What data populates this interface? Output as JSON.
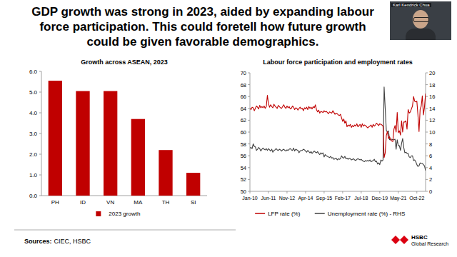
{
  "slide": {
    "title": "GDP growth was strong in 2023, aided by expanding labour force participation. This could foretell how future growth could be given favorable demographics.",
    "presenter": "Karl Kendrick Chua",
    "sources_label": "Sources:",
    "sources": "CIEC, HSBC",
    "brand": "HSBC",
    "brand_sub": "Global Research"
  },
  "chart_data": [
    {
      "type": "bar",
      "title": "Growth across ASEAN, 2023",
      "categories": [
        "PH",
        "ID",
        "VN",
        "MA",
        "TH",
        "SI"
      ],
      "series": [
        {
          "name": "2023 growth",
          "color": "#c00000",
          "values": [
            5.55,
            5.05,
            5.05,
            3.7,
            2.2,
            1.1
          ]
        }
      ],
      "ylim": [
        0,
        6
      ],
      "yticks": [
        {
          "value": 0,
          "label": "0.0"
        },
        {
          "value": 1,
          "label": "1.0"
        },
        {
          "value": 2,
          "label": "2.0"
        },
        {
          "value": 3,
          "label": "3.0"
        },
        {
          "value": 4,
          "label": "4.0"
        },
        {
          "value": 5,
          "label": "5.0"
        },
        {
          "value": 6,
          "label": "6.0"
        }
      ],
      "legend": "bottom",
      "grid": false
    },
    {
      "type": "line",
      "title": "Labour force participation and employment rates",
      "categories": [
        "Jan-10",
        null,
        null,
        null,
        null,
        null,
        null,
        null,
        null,
        null,
        null,
        null,
        null,
        null,
        null,
        null,
        null,
        "Jun-11",
        null,
        null,
        null,
        null,
        null,
        null,
        null,
        null,
        null,
        null,
        null,
        null,
        null,
        null,
        null,
        null,
        "Nov-12",
        null,
        null,
        null,
        null,
        null,
        null,
        null,
        null,
        null,
        null,
        null,
        null,
        null,
        null,
        null,
        null,
        "Apr-14",
        null,
        null,
        null,
        null,
        null,
        null,
        null,
        null,
        null,
        null,
        null,
        null,
        null,
        null,
        null,
        null,
        "Sep-15",
        null,
        null,
        null,
        null,
        null,
        null,
        null,
        null,
        null,
        null,
        null,
        null,
        null,
        null,
        null,
        null,
        "Feb-17",
        null,
        null,
        null,
        null,
        null,
        null,
        null,
        null,
        null,
        null,
        null,
        null,
        null,
        null,
        null,
        null,
        "Jul-18",
        null,
        null,
        null,
        null,
        null,
        null,
        null,
        null,
        null,
        null,
        null,
        null,
        null,
        null,
        null,
        null,
        "Dec-19",
        null,
        null,
        null,
        null,
        null,
        null,
        null,
        null,
        null,
        null,
        null,
        null,
        null,
        null,
        null,
        null,
        "May-21",
        null,
        null,
        null,
        null,
        null,
        null,
        null,
        null,
        null,
        null,
        null,
        null,
        null,
        null,
        null,
        null,
        "Oct-22",
        null,
        null,
        null,
        null,
        null,
        null,
        null,
        null
      ],
      "series": [
        {
          "name": "LFP rate (%)",
          "color": "#c00000",
          "values": [
            64.0,
            63.8,
            64.2,
            64.1,
            63.6,
            64.0,
            64.4,
            64.2,
            63.9,
            64.5,
            64.1,
            64.3,
            64.1,
            64.4,
            64.0,
            64.3,
            66.2,
            64.8,
            64.2,
            64.6,
            64.3,
            64.1,
            64.7,
            64.4,
            64.2,
            64.0,
            64.5,
            64.3,
            64.1,
            64.0,
            64.3,
            64.6,
            64.2,
            64.0,
            64.4,
            64.1,
            64.3,
            63.9,
            64.0,
            64.4,
            64.2,
            63.8,
            64.1,
            64.0,
            63.7,
            64.0,
            64.2,
            63.9,
            64.0,
            63.6,
            64.1,
            63.9,
            64.2,
            63.8,
            64.3,
            64.0,
            64.2,
            63.9,
            64.3,
            64.1,
            64.6,
            63.8,
            63.4,
            63.7,
            63.2,
            63.5,
            63.4,
            63.3,
            63.6,
            63.4,
            63.5,
            63.3,
            63.1,
            63.4,
            63.3,
            63.2,
            63.6,
            63.3,
            63.0,
            63.2,
            63.1,
            62.9,
            62.8,
            63.0,
            62.4,
            61.8,
            62.2,
            61.5,
            61.9,
            60.9,
            61.2,
            61.0,
            61.3,
            60.8,
            61.1,
            60.9,
            61.2,
            61.0,
            61.4,
            60.9,
            61.1,
            61.3,
            60.8,
            61.4,
            61.0,
            61.2,
            61.1,
            60.9,
            60.7,
            60.9,
            61.0,
            61.2,
            60.8,
            61.3,
            61.0,
            61.2,
            61.5,
            61.3,
            61.1,
            61.4,
            61.3,
            61.2,
            61.0,
            55.7,
            56.5,
            59.4,
            60.1,
            58.9,
            59.2,
            58.7,
            58.5,
            58.4,
            60.5,
            61.1,
            60.0,
            63.3,
            59.9,
            60.2,
            59.5,
            61.9,
            60.0,
            61.7,
            61.7,
            61.9,
            60.5,
            63.8,
            63.2,
            63.4,
            63.9,
            64.4,
            66.0,
            65.2,
            65.1,
            65.2,
            62.9,
            60.1,
            63.8,
            64.4,
            66.1,
            62.9,
            64.2,
            66.5
          ]
        },
        {
          "name": "Unemployment rate (%) - RHS",
          "color": "#404040",
          "axis": "y2",
          "values": [
            7.3,
            7.4,
            7.2,
            8.0,
            7.6,
            7.5,
            6.9,
            7.1,
            7.4,
            7.2,
            6.8,
            7.1,
            7.3,
            7.1,
            7.0,
            7.2,
            6.9,
            7.2,
            7.0,
            6.8,
            7.1,
            6.6,
            6.9,
            7.0,
            7.2,
            7.0,
            6.9,
            7.1,
            7.0,
            6.8,
            7.0,
            7.1,
            6.9,
            6.8,
            7.0,
            6.9,
            7.1,
            7.2,
            7.0,
            6.9,
            7.3,
            6.8,
            7.1,
            7.0,
            6.9,
            6.5,
            6.8,
            6.9,
            6.9,
            7.1,
            7.0,
            6.8,
            6.6,
            6.9,
            6.7,
            6.5,
            6.7,
            6.4,
            6.6,
            6.8,
            6.6,
            6.5,
            6.7,
            6.4,
            6.2,
            6.5,
            6.3,
            6.5,
            5.8,
            6.2,
            6.0,
            5.9,
            5.8,
            5.7,
            5.9,
            5.6,
            5.7,
            5.4,
            5.5,
            5.6,
            5.3,
            5.5,
            5.4,
            5.5,
            6.0,
            5.7,
            5.6,
            5.9,
            5.5,
            5.6,
            5.4,
            5.6,
            5.5,
            5.3,
            5.4,
            5.5,
            5.3,
            5.2,
            5.4,
            5.5,
            5.4,
            5.3,
            5.4,
            5.2,
            5.1,
            5.0,
            5.2,
            5.1,
            5.2,
            5.1,
            5.3,
            5.0,
            5.1,
            5.2,
            5.4,
            5.0,
            5.1,
            4.6,
            4.8,
            4.5,
            5.3,
            5.1,
            5.3,
            17.6,
            14.0,
            10.3,
            10.0,
            10.2,
            8.7,
            8.7,
            8.8,
            8.7,
            8.7,
            8.8,
            7.1,
            8.7,
            7.7,
            7.7,
            6.9,
            8.1,
            8.9,
            7.4,
            6.5,
            6.6,
            6.4,
            6.4,
            5.8,
            5.7,
            6.0,
            6.0,
            5.2,
            5.3,
            5.0,
            4.5,
            4.2,
            4.3,
            4.8,
            4.7,
            4.7,
            4.5,
            4.3,
            3.5
          ]
        }
      ],
      "ylim": [
        50,
        70
      ],
      "yticks": [
        50,
        52,
        54,
        56,
        58,
        60,
        62,
        64,
        66,
        68,
        70
      ],
      "y2lim": [
        0,
        20
      ],
      "y2ticks": [
        0,
        2,
        4,
        6,
        8,
        10,
        12,
        14,
        16,
        18,
        20
      ],
      "legend": "bottom",
      "grid": false
    }
  ]
}
